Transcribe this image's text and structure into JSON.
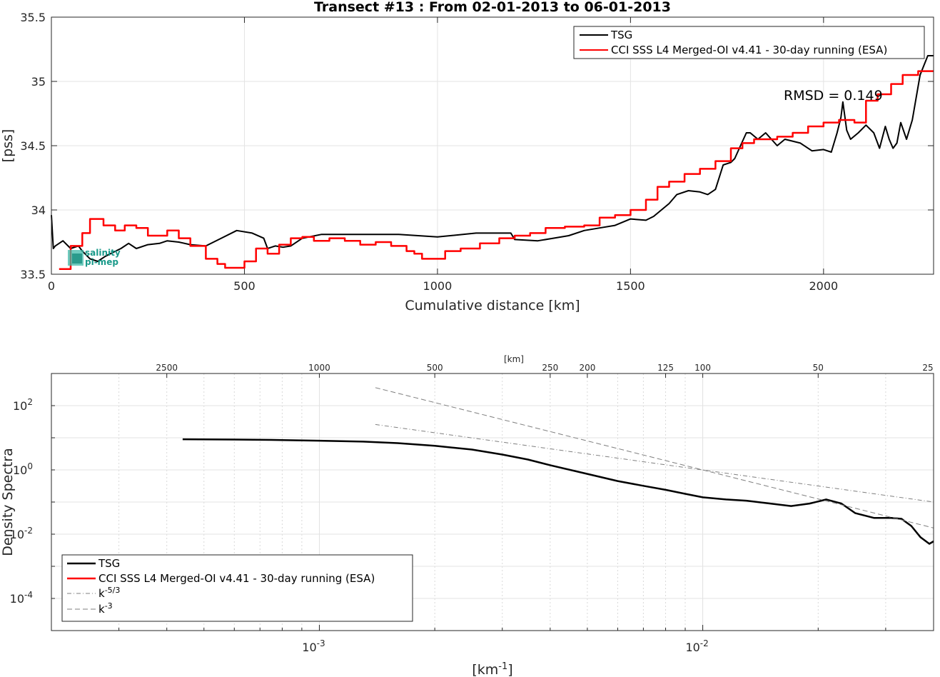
{
  "chart_data": [
    {
      "type": "line",
      "title": "Transect #13 : From 02-01-2013 to 06-01-2013",
      "xlabel": "Cumulative distance [km]",
      "ylabel": "[pss]",
      "xlim": [
        0,
        2285
      ],
      "ylim": [
        33.5,
        35.5
      ],
      "xticks": [
        0,
        500,
        1000,
        1500,
        2000
      ],
      "yticks": [
        33.5,
        34,
        34.5,
        35,
        35.5
      ],
      "grid": true,
      "legend_position": "top-right",
      "annotation": "RMSD = 0.149",
      "series": [
        {
          "name": "TSG",
          "color": "#000000",
          "step": false,
          "x": [
            0,
            5,
            10,
            30,
            50,
            70,
            80,
            100,
            120,
            140,
            160,
            180,
            200,
            220,
            250,
            280,
            300,
            330,
            360,
            400,
            440,
            480,
            520,
            550,
            560,
            580,
            600,
            620,
            650,
            700,
            800,
            900,
            1000,
            1100,
            1190,
            1200,
            1260,
            1300,
            1340,
            1380,
            1420,
            1460,
            1500,
            1540,
            1560,
            1600,
            1620,
            1650,
            1680,
            1700,
            1720,
            1740,
            1760,
            1770,
            1785,
            1800,
            1810,
            1830,
            1850,
            1880,
            1900,
            1940,
            1970,
            2000,
            2020,
            2035,
            2045,
            2050,
            2060,
            2070,
            2090,
            2110,
            2130,
            2145,
            2160,
            2170,
            2180,
            2190,
            2200,
            2215,
            2230,
            2250,
            2270,
            2285
          ],
          "y": [
            33.96,
            33.7,
            33.72,
            33.76,
            33.7,
            33.72,
            33.68,
            33.62,
            33.6,
            33.64,
            33.67,
            33.7,
            33.74,
            33.7,
            33.73,
            33.74,
            33.76,
            33.75,
            33.73,
            33.72,
            33.78,
            33.84,
            33.82,
            33.78,
            33.7,
            33.72,
            33.71,
            33.72,
            33.78,
            33.81,
            33.81,
            33.81,
            33.79,
            33.82,
            33.82,
            33.77,
            33.76,
            33.78,
            33.8,
            33.84,
            33.86,
            33.88,
            33.93,
            33.92,
            33.95,
            34.05,
            34.12,
            34.15,
            34.14,
            34.12,
            34.16,
            34.35,
            34.37,
            34.4,
            34.5,
            34.6,
            34.6,
            34.55,
            34.6,
            34.5,
            34.55,
            34.52,
            34.46,
            34.47,
            34.45,
            34.6,
            34.72,
            34.84,
            34.62,
            34.55,
            34.6,
            34.66,
            34.6,
            34.48,
            34.65,
            34.55,
            34.48,
            34.52,
            34.68,
            34.55,
            34.7,
            35.05,
            35.2,
            35.2
          ]
        },
        {
          "name": "CCI SSS L4 Merged-OI v4.41 - 30-day running (ESA)",
          "color": "#ff0000",
          "step": true,
          "x": [
            20,
            50,
            80,
            100,
            135,
            165,
            190,
            220,
            250,
            300,
            330,
            360,
            390,
            400,
            430,
            450,
            500,
            530,
            560,
            590,
            620,
            650,
            680,
            720,
            760,
            800,
            840,
            880,
            920,
            940,
            960,
            985,
            1020,
            1060,
            1110,
            1160,
            1200,
            1240,
            1280,
            1330,
            1380,
            1420,
            1460,
            1500,
            1540,
            1570,
            1600,
            1640,
            1680,
            1720,
            1760,
            1790,
            1820,
            1840,
            1880,
            1920,
            1960,
            2000,
            2040,
            2080,
            2110,
            2140,
            2175,
            2205,
            2245,
            2285
          ],
          "y": [
            33.54,
            33.72,
            33.82,
            33.93,
            33.88,
            33.84,
            33.88,
            33.86,
            33.8,
            33.84,
            33.78,
            33.72,
            33.72,
            33.62,
            33.58,
            33.55,
            33.6,
            33.7,
            33.66,
            33.73,
            33.78,
            33.79,
            33.76,
            33.78,
            33.76,
            33.73,
            33.75,
            33.72,
            33.68,
            33.66,
            33.62,
            33.62,
            33.68,
            33.7,
            33.74,
            33.78,
            33.8,
            33.82,
            33.86,
            33.87,
            33.88,
            33.94,
            33.96,
            34.0,
            34.08,
            34.18,
            34.22,
            34.28,
            34.32,
            34.38,
            34.48,
            34.52,
            34.55,
            34.55,
            34.57,
            34.6,
            34.65,
            34.68,
            34.7,
            34.68,
            34.85,
            34.9,
            34.98,
            35.05,
            35.08,
            35.08
          ]
        }
      ]
    },
    {
      "type": "line",
      "xlabel": "[km-1]",
      "top_xlabel": "[km]",
      "ylabel": "Density Spectra",
      "x_scale": "log",
      "y_scale": "log",
      "xlim": [
        0.0002,
        0.04
      ],
      "ylim": [
        1e-05,
        1000
      ],
      "xtick_labels": [
        "10-3",
        "10-2"
      ],
      "ytick_labels": [
        "10-4",
        "10-2",
        "100",
        "102"
      ],
      "top_xticks": [
        2500,
        1000,
        500,
        250,
        200,
        125,
        100,
        50,
        25
      ],
      "grid": true,
      "legend_position": "bottom-left",
      "series": [
        {
          "name": "TSG",
          "color": "#000000",
          "dash": "solid",
          "x": [
            0.00044,
            0.0006,
            0.0008,
            0.001,
            0.0013,
            0.0016,
            0.002,
            0.0025,
            0.003,
            0.0035,
            0.004,
            0.005,
            0.006,
            0.007,
            0.008,
            0.009,
            0.01,
            0.0115,
            0.013,
            0.015,
            0.017,
            0.019,
            0.021,
            0.023,
            0.025,
            0.028,
            0.031,
            0.033,
            0.035,
            0.037,
            0.039,
            0.04
          ],
          "y": [
            9,
            8.8,
            8.5,
            8.1,
            7.6,
            6.8,
            5.6,
            4.3,
            3.0,
            2.1,
            1.4,
            0.75,
            0.45,
            0.32,
            0.24,
            0.18,
            0.14,
            0.12,
            0.11,
            0.09,
            0.075,
            0.09,
            0.12,
            0.09,
            0.045,
            0.032,
            0.032,
            0.03,
            0.018,
            0.008,
            0.005,
            0.006
          ]
        },
        {
          "name": "CCI SSS L4 Merged-OI v4.41 - 30-day running (ESA)",
          "color": "#ff0000",
          "dash": "solid",
          "x": [],
          "y": []
        },
        {
          "name": "k-5/3",
          "color": "#7f7f7f",
          "dash": "dashdot",
          "x": [
            0.0014,
            0.04
          ],
          "y": [
            25.9,
            0.1
          ]
        },
        {
          "name": "k-3",
          "color": "#7f7f7f",
          "dash": "dashed",
          "x": [
            0.0014,
            0.04
          ],
          "y": [
            364,
            0.0156
          ]
        }
      ]
    }
  ],
  "watermark": {
    "line1": "salinity",
    "line2": "pi-mep"
  }
}
